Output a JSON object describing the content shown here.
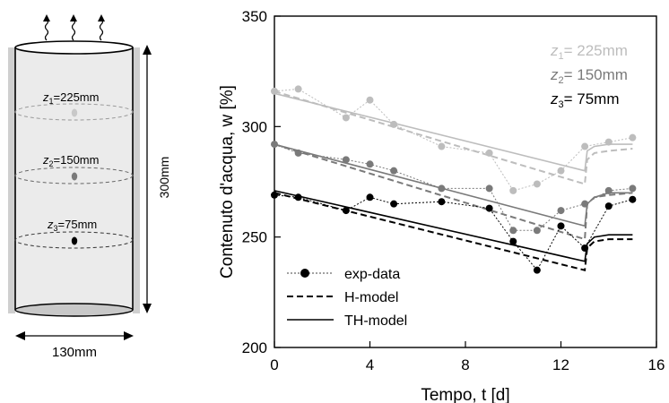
{
  "schematic": {
    "depth_labels": [
      {
        "sym": "z",
        "sub": "1",
        "val": "=225mm",
        "color": "#bdbdbd"
      },
      {
        "sym": "z",
        "sub": "2",
        "val": "=150mm",
        "color": "#7a7a7a"
      },
      {
        "sym": "z",
        "sub": "3",
        "val": "=75mm",
        "color": "#000000"
      }
    ],
    "height_label": "300mm",
    "width_label": "130mm"
  },
  "chart_data": {
    "type": "line",
    "xlabel": "Tempo, t [d]",
    "ylabel": "Contenuto d'acqua, w [%]",
    "xlim": [
      0,
      16
    ],
    "ylim": [
      200,
      350
    ],
    "xticks": [
      0,
      4,
      8,
      12,
      16
    ],
    "yticks": [
      200,
      250,
      300,
      350
    ],
    "grid": false,
    "legend": {
      "placement": "bottom-left",
      "entries": [
        {
          "label": "exp-data",
          "style": "dotted-markers"
        },
        {
          "label": "H-model",
          "style": "dashed"
        },
        {
          "label": "TH-model",
          "style": "solid"
        }
      ]
    },
    "depth_legend": {
      "placement": "top-right",
      "entries": [
        {
          "sym": "z",
          "sub": "1",
          "val": "= 225mm",
          "color": "#bdbdbd"
        },
        {
          "sym": "z",
          "sub": "2",
          "val": "= 150mm",
          "color": "#7a7a7a"
        },
        {
          "sym": "z",
          "sub": "3",
          "val": "= 75mm",
          "color": "#000000"
        }
      ]
    },
    "depth_colors": {
      "z1": "#bdbdbd",
      "z2": "#7a7a7a",
      "z3": "#000000"
    },
    "exp_data": {
      "z1": {
        "x": [
          0,
          1,
          3,
          4,
          5,
          7,
          9,
          10,
          11,
          12,
          13,
          14,
          15
        ],
        "y": [
          316,
          317,
          304,
          312,
          301,
          291,
          288,
          271,
          274,
          280,
          291,
          293,
          295
        ]
      },
      "z2": {
        "x": [
          0,
          1,
          3,
          4,
          5,
          7,
          9,
          10,
          11,
          12,
          13,
          14,
          15
        ],
        "y": [
          292,
          288,
          285,
          283,
          280,
          272,
          272,
          253,
          253,
          262,
          265,
          271,
          272
        ]
      },
      "z3": {
        "x": [
          0,
          1,
          3,
          4,
          5,
          7,
          9,
          10,
          11,
          12,
          13,
          14,
          15
        ],
        "y": [
          269,
          268,
          262,
          268,
          265,
          266,
          263,
          248,
          235,
          255,
          245,
          264,
          267
        ]
      }
    },
    "h_model": {
      "z1": {
        "x": [
          0,
          13,
          13.1,
          13.4,
          14,
          15
        ],
        "y": [
          316,
          274,
          285,
          288,
          289,
          290
        ]
      },
      "z2": {
        "x": [
          0,
          13,
          13.1,
          13.4,
          14,
          15
        ],
        "y": [
          292,
          249,
          265,
          268,
          269,
          270
        ]
      },
      "z3": {
        "x": [
          0,
          13,
          13.1,
          13.4,
          14,
          15
        ],
        "y": [
          270,
          235,
          245,
          248,
          249,
          249
        ]
      }
    },
    "th_model": {
      "z1": {
        "x": [
          0,
          13,
          13.1,
          13.4,
          14,
          15
        ],
        "y": [
          315,
          280,
          289,
          291,
          292,
          292
        ]
      },
      "z2": {
        "x": [
          0,
          13,
          13.1,
          13.4,
          14,
          15
        ],
        "y": [
          292,
          255,
          265,
          268,
          270,
          270
        ]
      },
      "z3": {
        "x": [
          0,
          13,
          13.1,
          13.4,
          14,
          15
        ],
        "y": [
          271,
          239,
          247,
          250,
          251,
          251
        ]
      }
    }
  }
}
